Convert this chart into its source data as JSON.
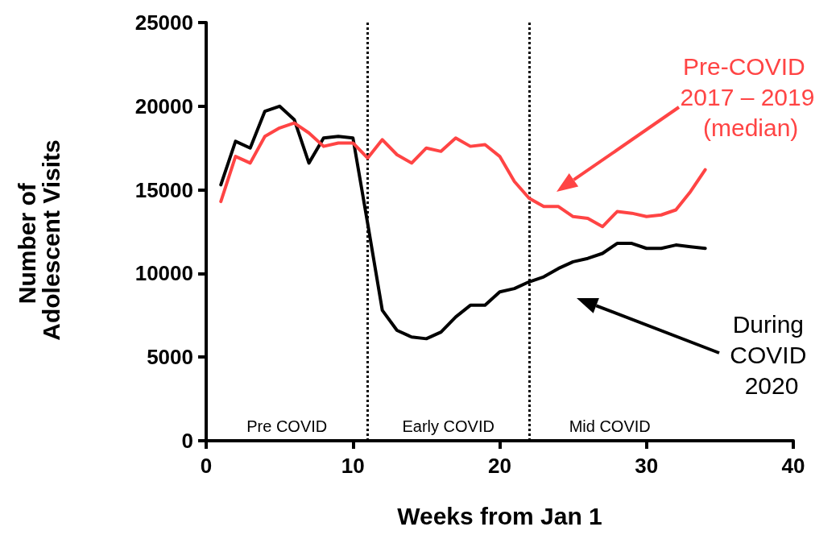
{
  "chart_data": {
    "type": "line",
    "xlabel": "Weeks from Jan 1",
    "ylabel": "Number of Adolescent Visits",
    "x": [
      1,
      2,
      3,
      4,
      5,
      6,
      7,
      8,
      9,
      10,
      11,
      12,
      13,
      14,
      15,
      16,
      17,
      18,
      19,
      20,
      21,
      22,
      23,
      24,
      25,
      26,
      27,
      28,
      29,
      30,
      31,
      32,
      33,
      34
    ],
    "series": [
      {
        "name": "Pre-COVID 2017 – 2019 (median)",
        "color": "#ff4444",
        "values": [
          14300,
          17000,
          16600,
          18200,
          18700,
          19000,
          18400,
          17600,
          17800,
          17800,
          16900,
          18000,
          17100,
          16600,
          17500,
          17300,
          18100,
          17600,
          17700,
          17000,
          15500,
          14500,
          14000,
          14000,
          13400,
          13300,
          12800,
          13700,
          13600,
          13400,
          13500,
          13800,
          14900,
          16200
        ]
      },
      {
        "name": "During COVID 2020",
        "color": "#000000",
        "values": [
          15300,
          17900,
          17500,
          19700,
          20000,
          19200,
          16600,
          18100,
          18200,
          18100,
          13000,
          7800,
          6600,
          6200,
          6100,
          6500,
          7400,
          8100,
          8100,
          8900,
          9100,
          9500,
          9800,
          10300,
          10700,
          10900,
          11200,
          11800,
          11800,
          11500,
          11500,
          11700,
          11600,
          11500
        ]
      }
    ],
    "xlim": [
      0,
      40
    ],
    "xticks": [
      0,
      10,
      20,
      30,
      40
    ],
    "ylim": [
      0,
      25000
    ],
    "yticks": [
      0,
      5000,
      10000,
      15000,
      20000,
      25000
    ],
    "ref_lines": [
      {
        "axis": "x",
        "value": 11,
        "line_style": "dotted",
        "color": "#000000"
      },
      {
        "axis": "x",
        "value": 22,
        "line_style": "dotted",
        "color": "#000000"
      }
    ],
    "annotations": [
      "Pre COVID",
      "Early COVID",
      "Mid COVID"
    ],
    "grid": false,
    "legend": "right",
    "marker": "none",
    "line_style": "solid"
  }
}
